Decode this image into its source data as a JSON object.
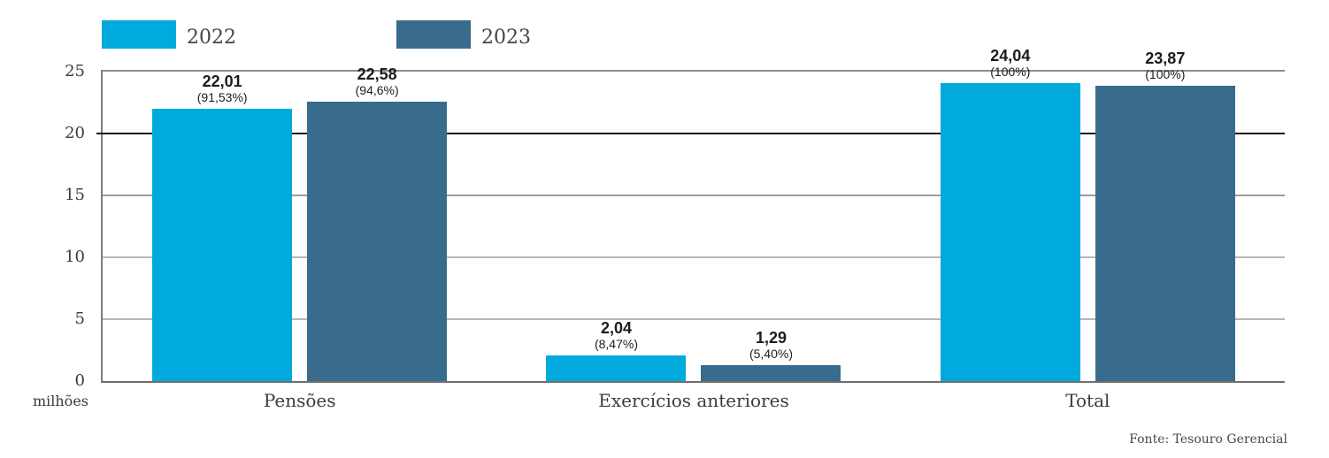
{
  "legend": [
    {
      "label": "2022",
      "color": "#00AADD"
    },
    {
      "label": "2023",
      "color": "#396B8D"
    }
  ],
  "source": "Fonte: Tesouro Gerencial",
  "chart_data": {
    "type": "bar",
    "categories": [
      "Pensões",
      "Exercícios anteriores",
      "Total"
    ],
    "series": [
      {
        "name": "2022",
        "color": "#00AADD",
        "values": [
          22.01,
          2.04,
          24.04
        ],
        "value_labels": [
          "22,01",
          "2,04",
          "24,04"
        ],
        "pct_labels": [
          "(91,53%)",
          "(8,47%)",
          "(100%)"
        ]
      },
      {
        "name": "2023",
        "color": "#396B8D",
        "values": [
          22.58,
          1.29,
          23.87
        ],
        "value_labels": [
          "22,58",
          "1,29",
          "23,87"
        ],
        "pct_labels": [
          "(94,6%)",
          "(5,40%)",
          "(100%)"
        ]
      }
    ],
    "xlabel": "",
    "ylabel": "milhões",
    "ylim": [
      0,
      25
    ],
    "y_ticks": [
      0,
      5,
      10,
      15,
      20,
      25
    ],
    "grid": "horizontal",
    "legend_position": "top-left",
    "source": "Fonte: Tesouro Gerencial"
  },
  "style": {
    "axis_border_color": "#7c7c7c",
    "axis_top_color": "#8d8d8d",
    "axis_bottom_color": "#6f6f6f",
    "gridlines": [
      {
        "value": 5,
        "color": "#b7b7b7",
        "height": 1.5
      },
      {
        "value": 10,
        "color": "#b7b7b7",
        "height": 1.5
      },
      {
        "value": 15,
        "color": "#9c9c9c",
        "height": 1.5
      },
      {
        "value": 20,
        "color": "#151515",
        "height": 2,
        "overshoot_left": 5
      }
    ]
  }
}
